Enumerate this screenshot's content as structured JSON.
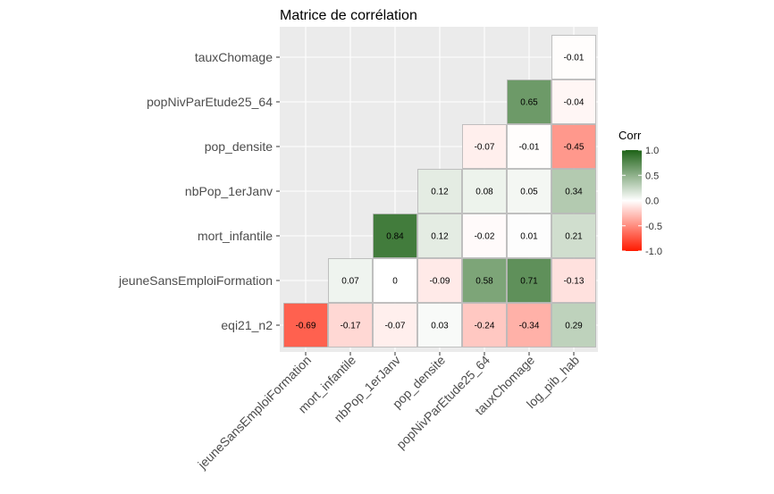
{
  "chart_data": {
    "type": "heatmap",
    "title": "Matrice de corrélation",
    "x_labels": [
      "jeuneSansEmploiFormation",
      "mort_infantile",
      "nbPop_1erJanv",
      "pop_densite",
      "popNivParEtude25_64",
      "tauxChomage",
      "log_pib_hab"
    ],
    "y_labels_bottom_to_top": [
      "eqi21_n2",
      "jeuneSansEmploiFormation",
      "mort_infantile",
      "nbPop_1erJanv",
      "pop_densite",
      "popNivParEtude25_64",
      "tauxChomage"
    ],
    "cells": [
      {
        "x": "jeuneSansEmploiFormation",
        "y": "eqi21_n2",
        "value": -0.69,
        "label": "-0.69"
      },
      {
        "x": "mort_infantile",
        "y": "eqi21_n2",
        "value": -0.17,
        "label": "-0.17"
      },
      {
        "x": "nbPop_1erJanv",
        "y": "eqi21_n2",
        "value": -0.07,
        "label": "-0.07"
      },
      {
        "x": "pop_densite",
        "y": "eqi21_n2",
        "value": 0.03,
        "label": "0.03"
      },
      {
        "x": "popNivParEtude25_64",
        "y": "eqi21_n2",
        "value": -0.24,
        "label": "-0.24"
      },
      {
        "x": "tauxChomage",
        "y": "eqi21_n2",
        "value": -0.34,
        "label": "-0.34"
      },
      {
        "x": "log_pib_hab",
        "y": "eqi21_n2",
        "value": 0.29,
        "label": "0.29"
      },
      {
        "x": "mort_infantile",
        "y": "jeuneSansEmploiFormation",
        "value": 0.07,
        "label": "0.07"
      },
      {
        "x": "nbPop_1erJanv",
        "y": "jeuneSansEmploiFormation",
        "value": 0.0,
        "label": "0"
      },
      {
        "x": "pop_densite",
        "y": "jeuneSansEmploiFormation",
        "value": -0.09,
        "label": "-0.09"
      },
      {
        "x": "popNivParEtude25_64",
        "y": "jeuneSansEmploiFormation",
        "value": 0.58,
        "label": "0.58"
      },
      {
        "x": "tauxChomage",
        "y": "jeuneSansEmploiFormation",
        "value": 0.71,
        "label": "0.71"
      },
      {
        "x": "log_pib_hab",
        "y": "jeuneSansEmploiFormation",
        "value": -0.13,
        "label": "-0.13"
      },
      {
        "x": "nbPop_1erJanv",
        "y": "mort_infantile",
        "value": 0.84,
        "label": "0.84"
      },
      {
        "x": "pop_densite",
        "y": "mort_infantile",
        "value": 0.12,
        "label": "0.12"
      },
      {
        "x": "popNivParEtude25_64",
        "y": "mort_infantile",
        "value": -0.02,
        "label": "-0.02"
      },
      {
        "x": "tauxChomage",
        "y": "mort_infantile",
        "value": 0.01,
        "label": "0.01"
      },
      {
        "x": "log_pib_hab",
        "y": "mort_infantile",
        "value": 0.21,
        "label": "0.21"
      },
      {
        "x": "pop_densite",
        "y": "nbPop_1erJanv",
        "value": 0.12,
        "label": "0.12"
      },
      {
        "x": "popNivParEtude25_64",
        "y": "nbPop_1erJanv",
        "value": 0.08,
        "label": "0.08"
      },
      {
        "x": "tauxChomage",
        "y": "nbPop_1erJanv",
        "value": 0.05,
        "label": "0.05"
      },
      {
        "x": "log_pib_hab",
        "y": "nbPop_1erJanv",
        "value": 0.34,
        "label": "0.34"
      },
      {
        "x": "popNivParEtude25_64",
        "y": "pop_densite",
        "value": -0.07,
        "label": "-0.07"
      },
      {
        "x": "tauxChomage",
        "y": "pop_densite",
        "value": -0.01,
        "label": "-0.01"
      },
      {
        "x": "log_pib_hab",
        "y": "pop_densite",
        "value": -0.45,
        "label": "-0.45"
      },
      {
        "x": "tauxChomage",
        "y": "popNivParEtude25_64",
        "value": 0.65,
        "label": "0.65"
      },
      {
        "x": "log_pib_hab",
        "y": "popNivParEtude25_64",
        "value": -0.04,
        "label": "-0.04"
      },
      {
        "x": "log_pib_hab",
        "y": "tauxChomage",
        "value": -0.01,
        "label": "-0.01"
      }
    ],
    "legend": {
      "title": "Corr",
      "ticks": [
        {
          "value": 1.0,
          "label": "1.0"
        },
        {
          "value": 0.5,
          "label": "0.5"
        },
        {
          "value": 0.0,
          "label": "0.0"
        },
        {
          "value": -0.5,
          "label": "-0.5"
        },
        {
          "value": -1.0,
          "label": "-1.0"
        }
      ],
      "placement": "right"
    },
    "value_range": [
      -1,
      1
    ],
    "colors": {
      "low": "#ff1a00",
      "mid": "#ffffff",
      "high": "#1e6317",
      "panel": "#ebebeb",
      "grid": "#ffffff",
      "cell_border": "#b3b3b3"
    }
  }
}
